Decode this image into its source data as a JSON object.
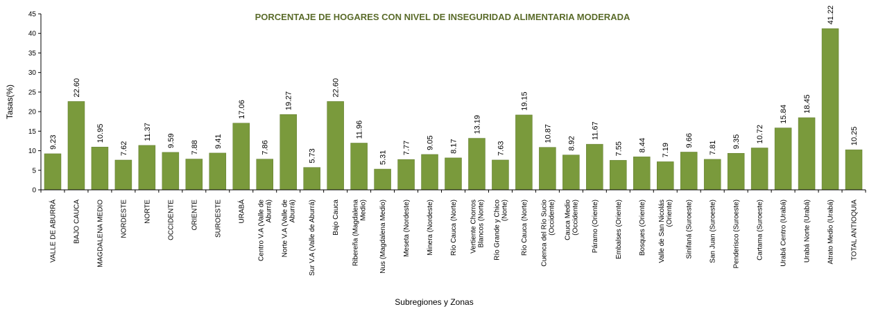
{
  "chart_data": {
    "type": "bar",
    "title": "PORCENTAJE DE HOGARES CON NIVEL DE INSEGURIDAD ALIMENTARIA MODERADA",
    "xlabel": "Subregiones y Zonas",
    "ylabel": "Tasas(%)",
    "ylim": [
      0,
      45
    ],
    "yticks": [
      0,
      5,
      10,
      15,
      20,
      25,
      30,
      35,
      40,
      45
    ],
    "bar_color": "#7a9a3c",
    "grid": false,
    "categories": [
      [
        "VALLE DE ABURRÁ"
      ],
      [
        "BAJO CAUCA"
      ],
      [
        "MAGDALENA MEDIO"
      ],
      [
        "NORDESTE"
      ],
      [
        "NORTE"
      ],
      [
        "OCCIDENTE"
      ],
      [
        "ORIENTE"
      ],
      [
        "SUROESTE"
      ],
      [
        "URABÁ"
      ],
      [
        "Centro V.A (Valle de",
        "Aburrá)"
      ],
      [
        "Norte V.A (Valle de",
        "Aburrá)"
      ],
      [
        "Sur V.A (Valle de Aburrá)"
      ],
      [
        "Bajo Cauca"
      ],
      [
        "Ribereña  (Magdalena",
        "Medio)"
      ],
      [
        "Nus  (Magdalena Medio)"
      ],
      [
        "Meseta  (Nordeste)"
      ],
      [
        "Minera  (Nordeste)"
      ],
      [
        "Río Cauca  (Norte)"
      ],
      [
        "Vertiente Chorros",
        "Blancos  (Norte)"
      ],
      [
        "Río Grande y Chico",
        "(Norte)"
      ],
      [
        "Río Cauca (Norte)"
      ],
      [
        "Cuenca del Río Sucio",
        "(Occidente)"
      ],
      [
        "Cauca Medio",
        "(Occidente)"
      ],
      [
        "Páramo  (Oriente)"
      ],
      [
        "Embalses  (Oriente)"
      ],
      [
        "Bosques  (Oriente)"
      ],
      [
        "Valle de San Nicolás",
        "(Oriente)"
      ],
      [
        "Sinifaná  (Suroeste)"
      ],
      [
        "San Juan  (Suroeste)"
      ],
      [
        "Penderisco  (Suroeste)"
      ],
      [
        "Cartama  (Suroeste)"
      ],
      [
        "Urabá Centro  (Urabá)"
      ],
      [
        "Urabá Norte  (Urabá)"
      ],
      [
        "Atrato Medio  (Urabá)"
      ],
      [
        "TOTAL ANTIOQUIA"
      ]
    ],
    "values": [
      9.23,
      22.6,
      10.95,
      7.62,
      11.37,
      9.59,
      7.88,
      9.41,
      17.06,
      7.86,
      19.27,
      5.73,
      22.6,
      11.96,
      5.31,
      7.77,
      9.05,
      8.17,
      13.19,
      7.63,
      19.15,
      10.87,
      8.92,
      11.67,
      7.55,
      8.44,
      7.19,
      9.66,
      7.81,
      9.35,
      10.72,
      15.84,
      18.45,
      41.22,
      10.25
    ],
    "value_labels": [
      "9.23",
      "22.60",
      "10.95",
      "7.62",
      "11.37",
      "9.59",
      "7.88",
      "9.41",
      "17.06",
      "7.86",
      "19.27",
      "5.73",
      "22.60",
      "11.96",
      "5.31",
      "7.77",
      "9.05",
      "8.17",
      "13.19",
      "7.63",
      "19.15",
      "10.87",
      "8.92",
      "11.67",
      "7.55",
      "8.44",
      "7.19",
      "9.66",
      "7.81",
      "9.35",
      "10.72",
      "15.84",
      "18.45",
      "41.22",
      "10.25"
    ]
  }
}
